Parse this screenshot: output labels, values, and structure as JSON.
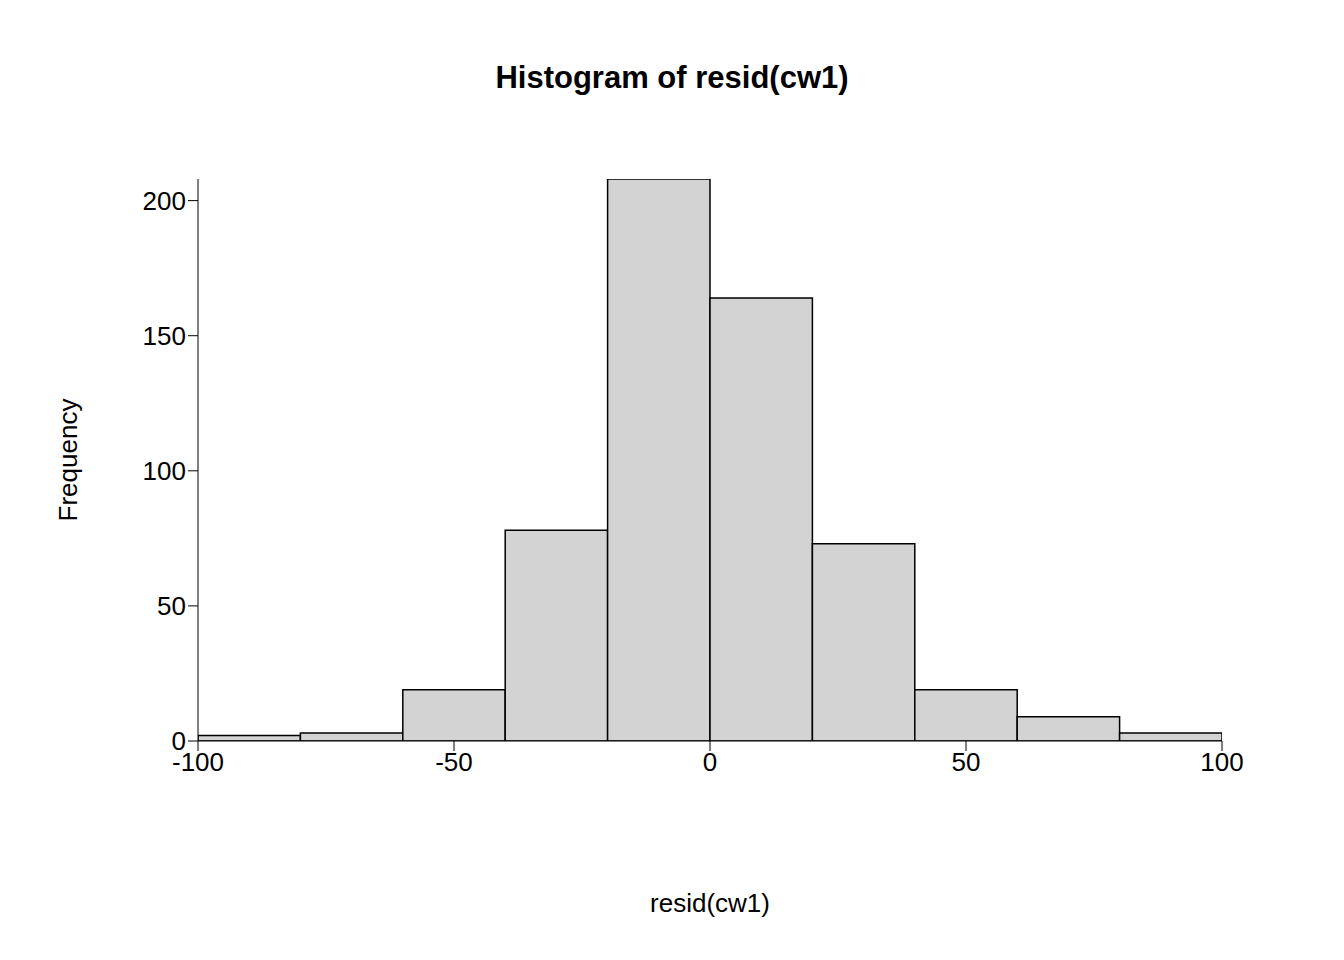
{
  "chart_data": {
    "type": "histogram",
    "title": "Histogram of resid(cw1)",
    "x_label": "resid(cw1)",
    "y_label": "Frequency",
    "bins": [
      -100,
      -80,
      -60,
      -40,
      -20,
      0,
      20,
      40,
      60,
      80,
      100
    ],
    "counts": [
      2,
      3,
      19,
      78,
      208,
      164,
      73,
      19,
      9,
      3
    ],
    "color": "#d3d3d3",
    "xlim": [
      -100,
      100
    ],
    "xticks": [
      -100,
      -50,
      0,
      50,
      100
    ],
    "ylim": [
      0,
      208
    ],
    "yticks": [
      0,
      50,
      100,
      150,
      200
    ],
    "grid": false
  }
}
